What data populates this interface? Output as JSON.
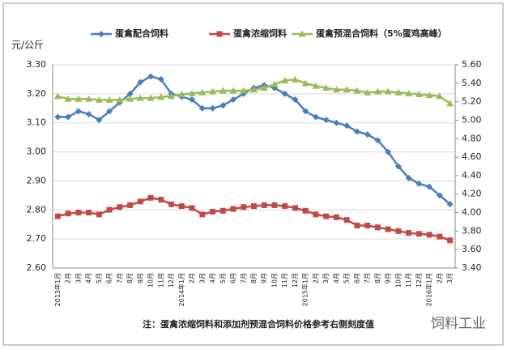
{
  "chart_data": {
    "type": "line",
    "y_label": "元/公斤",
    "note": "注：蛋禽浓缩饲料和添加剂预混合饲料价格参考右侧刻度值",
    "watermark": "饲料工业",
    "categories": [
      "2013年1月",
      "2月",
      "3月",
      "4月",
      "5月",
      "6月",
      "7月",
      "8月",
      "9月",
      "10月",
      "11月",
      "12月",
      "2014年1月",
      "2月",
      "3月",
      "4月",
      "5月",
      "6月",
      "7月",
      "8月",
      "9月",
      "10月",
      "11月",
      "12月",
      "2015年1月",
      "2月",
      "3月",
      "4月",
      "5月",
      "6月",
      "7月",
      "8月",
      "9月",
      "10月",
      "11月",
      "12月",
      "2016年1月",
      "2月",
      "3月"
    ],
    "ylim": [
      2.6,
      3.3
    ],
    "yticks": [
      {
        "value": 2.6,
        "label": "2.60"
      },
      {
        "value": 2.7,
        "label": "2.70"
      },
      {
        "value": 2.8,
        "label": "2.80"
      },
      {
        "value": 2.9,
        "label": "2.90"
      },
      {
        "value": 3.0,
        "label": "3.00"
      },
      {
        "value": 3.1,
        "label": "3.10"
      },
      {
        "value": 3.2,
        "label": "3.20"
      },
      {
        "value": 3.3,
        "label": "3.30"
      }
    ],
    "y2lim": [
      3.4,
      5.6
    ],
    "y2ticks": [
      {
        "value": 3.4,
        "label": "3.40"
      },
      {
        "value": 3.6,
        "label": "3.60"
      },
      {
        "value": 3.8,
        "label": "3.80"
      },
      {
        "value": 4.0,
        "label": "4.00"
      },
      {
        "value": 4.2,
        "label": "4.20"
      },
      {
        "value": 4.4,
        "label": "4.40"
      },
      {
        "value": 4.6,
        "label": "4.60"
      },
      {
        "value": 4.8,
        "label": "4.80"
      },
      {
        "value": 5.0,
        "label": "5.00"
      },
      {
        "value": 5.2,
        "label": "5.20"
      },
      {
        "value": 5.4,
        "label": "5.40"
      },
      {
        "value": 5.6,
        "label": "5.60"
      }
    ],
    "grid": true,
    "series": [
      {
        "name": "蛋禽配合饲料",
        "color": "#4a7ebb",
        "marker": "diamond",
        "axis": "y",
        "values": [
          3.12,
          3.12,
          3.14,
          3.13,
          3.11,
          3.14,
          3.17,
          3.2,
          3.24,
          3.26,
          3.25,
          3.2,
          3.19,
          3.18,
          3.15,
          3.15,
          3.16,
          3.18,
          3.2,
          3.22,
          3.23,
          3.22,
          3.2,
          3.18,
          3.14,
          3.12,
          3.11,
          3.1,
          3.09,
          3.07,
          3.06,
          3.04,
          3.0,
          2.95,
          2.91,
          2.89,
          2.88,
          2.85,
          2.82
        ]
      },
      {
        "name": "蛋禽浓缩饲料",
        "color": "#be4b48",
        "marker": "square",
        "axis": "y2",
        "values": [
          3.96,
          3.99,
          4.0,
          4.0,
          3.98,
          4.03,
          4.06,
          4.08,
          4.12,
          4.16,
          4.14,
          4.09,
          4.07,
          4.05,
          3.98,
          4.01,
          4.02,
          4.04,
          4.06,
          4.07,
          4.08,
          4.08,
          4.07,
          4.05,
          4.02,
          3.98,
          3.96,
          3.95,
          3.92,
          3.86,
          3.86,
          3.84,
          3.82,
          3.8,
          3.78,
          3.77,
          3.76,
          3.74,
          3.7
        ]
      },
      {
        "name": "蛋禽预混合饲料（5%蛋鸡高峰）",
        "color": "#9bbb59",
        "marker": "triangle",
        "axis": "y2",
        "values": [
          5.26,
          5.23,
          5.23,
          5.23,
          5.22,
          5.22,
          5.22,
          5.23,
          5.24,
          5.24,
          5.25,
          5.26,
          5.28,
          5.29,
          5.3,
          5.31,
          5.32,
          5.32,
          5.32,
          5.33,
          5.35,
          5.39,
          5.43,
          5.44,
          5.4,
          5.37,
          5.35,
          5.33,
          5.33,
          5.32,
          5.3,
          5.31,
          5.31,
          5.3,
          5.29,
          5.28,
          5.27,
          5.26,
          5.18
        ]
      }
    ]
  }
}
